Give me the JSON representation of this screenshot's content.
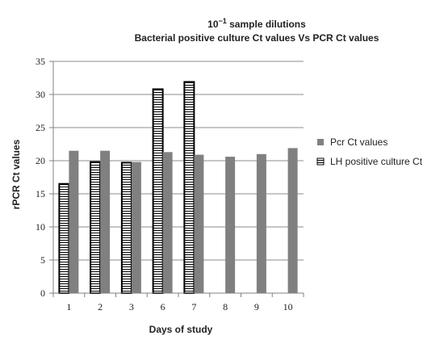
{
  "chart_data": {
    "type": "bar",
    "title_prefix": "10",
    "title_superscript": "−1",
    "title_line1_suffix": " sample dilutions",
    "title_line2": "Bacterial positive culture Ct values Vs PCR Ct values",
    "xlabel": "Days of study",
    "ylabel": "rPCR Ct values",
    "categories": [
      "1",
      "2",
      "3",
      "6",
      "7",
      "8",
      "9",
      "10"
    ],
    "ylim": [
      0,
      35
    ],
    "yticks": [
      0,
      5,
      10,
      15,
      20,
      25,
      30,
      35
    ],
    "grid": "horizontal",
    "legend_position": "right",
    "series": [
      {
        "name": "LH positive culture Ct",
        "values": [
          16.5,
          19.8,
          19.7,
          30.8,
          31.9,
          null,
          null,
          null
        ],
        "style": "horizontal-hatch",
        "color": "#ffffff",
        "stroke": "#000000"
      },
      {
        "name": "Pcr Ct values",
        "values": [
          21.5,
          21.5,
          19.8,
          21.3,
          20.9,
          20.6,
          21.0,
          21.9
        ],
        "style": "solid",
        "color": "#808080"
      }
    ],
    "legend_order": [
      "Pcr Ct values",
      "LH positive culture Ct"
    ]
  }
}
